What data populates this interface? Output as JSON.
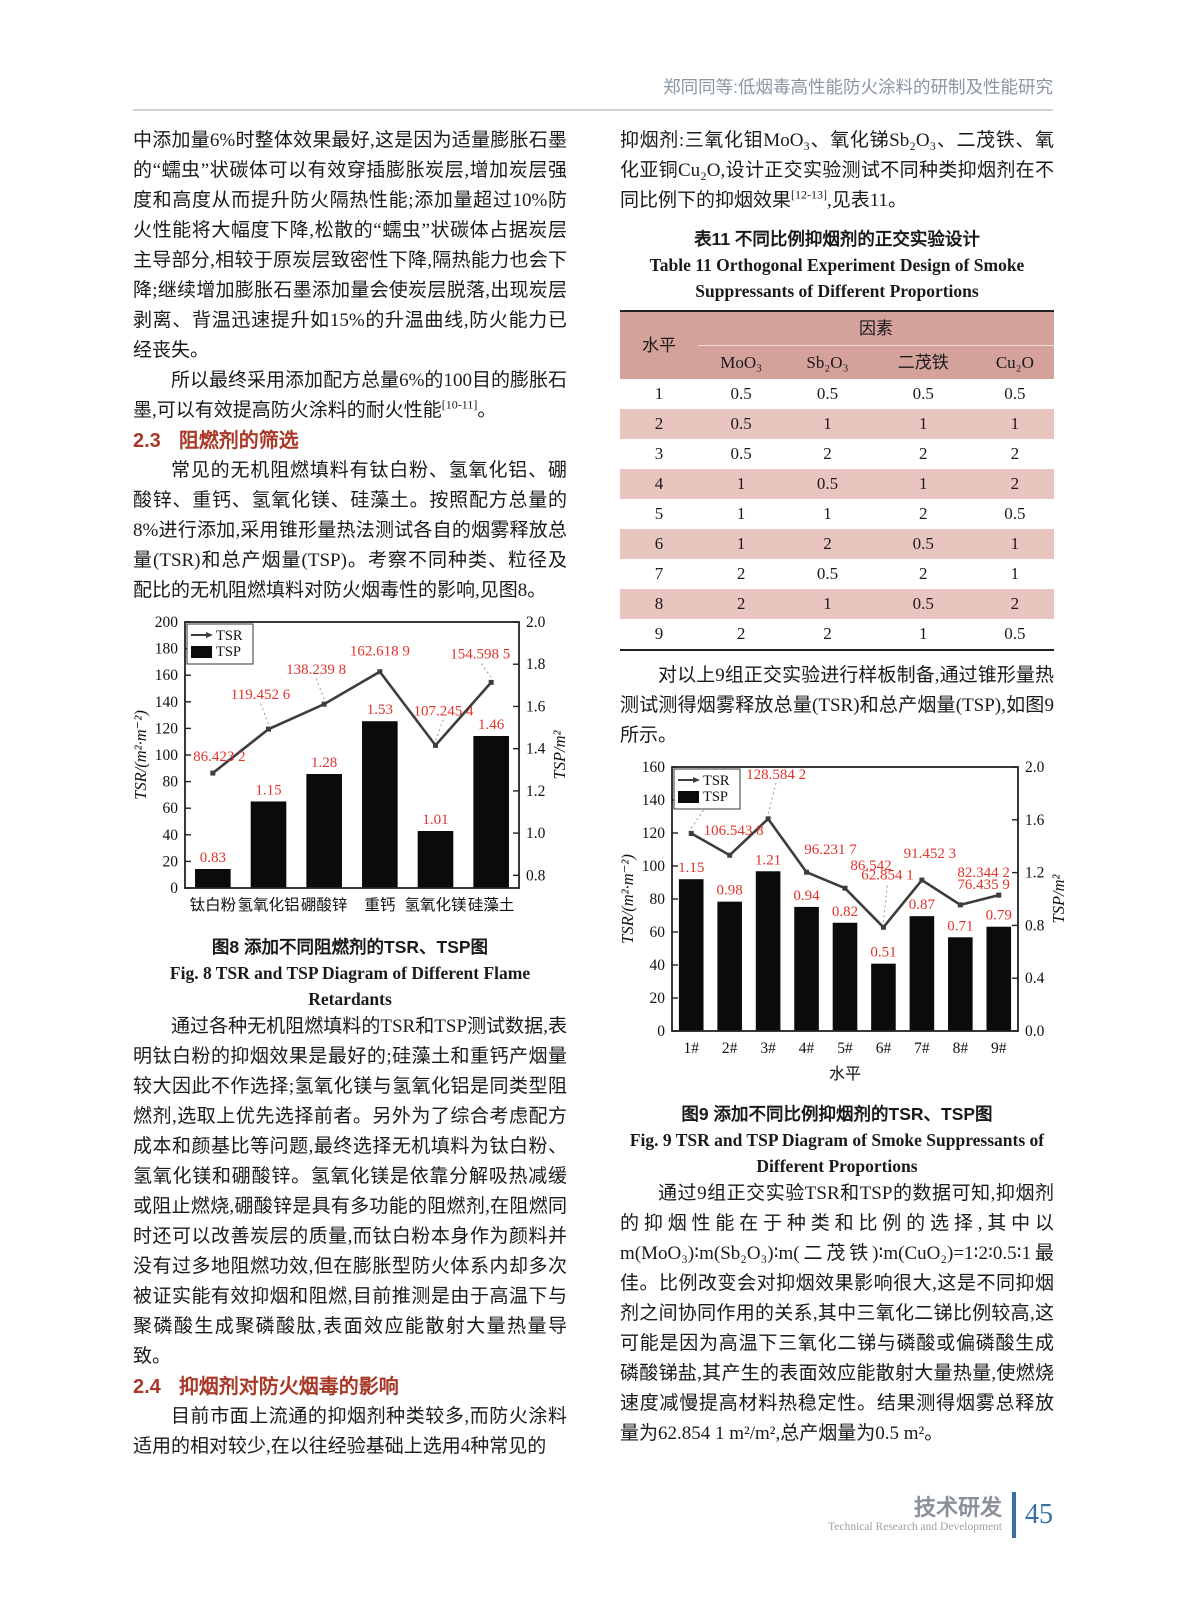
{
  "header": {
    "running_title": "郑同同等:低烟毒高性能防火涂料的研制及性能研究"
  },
  "left_column": {
    "para1": "中添加量6%时整体效果最好,这是因为适量膨胀石墨的“蠕虫”状碳体可以有效穿插膨胀炭层,增加炭层强度和高度从而提升防火隔热性能;添加量超过10%防火性能将大幅度下降,松散的“蠕虫”状碳体占据炭层主导部分,相较于原炭层致密性下降,隔热能力也会下降;继续增加膨胀石墨添加量会使炭层脱落,出现炭层剥离、背温迅速提升如15%的升温曲线,防火能力已经丧失。",
    "para2": {
      "text": "所以最终采用添加配方总量6%的100目的膨胀石墨,可以有效提高防火涂料的耐火性能",
      "ref": "[10-11]",
      "tail": "。"
    },
    "heading_2_3": {
      "num": "2.3",
      "title": "阻燃剂的筛选"
    },
    "para3": "常见的无机阻燃填料有钛白粉、氢氧化铝、硼酸锌、重钙、氢氧化镁、硅藻土。按照配方总量的8%进行添加,采用锥形量热法测试各自的烟雾释放总量(TSR)和总产烟量(TSP)。考察不同种类、粒径及配比的无机阻燃填料对防火烟毒性的影响,见图8。",
    "fig8_caption_cn": "图8  添加不同阻燃剂的TSR、TSP图",
    "fig8_caption_en": "Fig. 8  TSR and TSP Diagram of Different Flame Retardants",
    "para4": "通过各种无机阻燃填料的TSR和TSP测试数据,表明钛白粉的抑烟效果是最好的;硅藻土和重钙产烟量较大因此不作选择;氢氧化镁与氢氧化铝是同类型阻燃剂,选取上优先选择前者。另外为了综合考虑配方成本和颜基比等问题,最终选择无机填料为钛白粉、氢氧化镁和硼酸锌。氢氧化镁是依靠分解吸热减缓或阻止燃烧,硼酸锌是具有多功能的阻燃剂,在阻燃同时还可以改善炭层的质量,而钛白粉本身作为颜料并没有过多地阻燃功效,但在膨胀型防火体系内却多次被证实能有效抑烟和阻燃,目前推测是由于高温下与聚磷酸生成聚磷酸肽,表面效应能散射大量热量导致。",
    "heading_2_4": {
      "num": "2.4",
      "title": "抑烟剂对防火烟毒的影响"
    },
    "para5": "目前市面上流通的抑烟剂种类较多,而防火涂料适用的相对较少,在以往经验基础上选用4种常见的"
  },
  "right_column": {
    "para1": {
      "text": "抑烟剂:三氧化钼MoO₃、氧化锑Sb₂O₃、二茂铁、氧化亚铜Cu₂O,设计正交实验测试不同种类抑烟剂在不同比例下的抑烟效果",
      "ref": "[12-13]",
      "tail": ",见表11。"
    },
    "table11": {
      "caption_cn": "表11  不同比例抑烟剂的正交实验设计",
      "caption_en": "Table 11  Orthogonal Experiment Design of Smoke Suppressants of Different Proportions",
      "level_header": "水平",
      "group_header": "因素",
      "factors": [
        "MoO₃",
        "Sb₂O₃",
        "二茂铁",
        "Cu₂O"
      ],
      "rows": [
        [
          "1",
          "0.5",
          "0.5",
          "0.5",
          "0.5"
        ],
        [
          "2",
          "0.5",
          "1",
          "1",
          "1"
        ],
        [
          "3",
          "0.5",
          "2",
          "2",
          "2"
        ],
        [
          "4",
          "1",
          "0.5",
          "1",
          "2"
        ],
        [
          "5",
          "1",
          "1",
          "2",
          "0.5"
        ],
        [
          "6",
          "1",
          "2",
          "0.5",
          "1"
        ],
        [
          "7",
          "2",
          "0.5",
          "2",
          "1"
        ],
        [
          "8",
          "2",
          "1",
          "0.5",
          "2"
        ],
        [
          "9",
          "2",
          "2",
          "1",
          "0.5"
        ]
      ]
    },
    "para2": "对以上9组正交实验进行样板制备,通过锥形量热测试测得烟雾释放总量(TSR)和总产烟量(TSP),如图9所示。",
    "fig9_caption_cn": "图9  添加不同比例抑烟剂的TSR、TSP图",
    "fig9_caption_en": "Fig. 9  TSR and TSP Diagram of Smoke Suppressants of Different Proportions",
    "para3": "通过9组正交实验TSR和TSP的数据可知,抑烟剂的抑烟性能在于种类和比例的选择,其中以m(MoO₃)∶m(Sb₂O₃)∶m(二茂铁)∶m(CuO₂)=1∶2∶0.5∶1最佳。比例改变会对抑烟效果影响很大,这是不同抑烟剂之间协同作用的关系,其中三氧化二锑比例较高,这可能是因为高温下三氧化二锑与磷酸或偏磷酸生成磷酸锑盐,其产生的表面效应能散射大量热量,使燃烧速度减慢提高材料热稳定性。结果测得烟雾总释放量为62.854 1 m²/m²,总产烟量为0.5 m²。"
  },
  "footer": {
    "section_cn": "技术研发",
    "section_en": "Technical Research and Development",
    "page_number": "45"
  },
  "chart_data": [
    {
      "id": "fig8",
      "type": "bar",
      "title": "添加不同阻燃剂的TSR、TSP图",
      "categories": [
        "钛白粉",
        "氢氧化铝",
        "硼酸锌",
        "重钙",
        "氢氧化镁",
        "硅藻土"
      ],
      "series": [
        {
          "name": "TSR",
          "type": "line",
          "axis": "left",
          "values": [
            86.4232,
            119.4526,
            138.2398,
            162.6189,
            107.2454,
            154.5985
          ],
          "labels": [
            "86.423 2",
            "119.452 6",
            "138.239 8",
            "162.618 9",
            "107.245 4",
            "154.598 5"
          ]
        },
        {
          "name": "TSP",
          "type": "bar",
          "axis": "right",
          "values": [
            0.83,
            1.15,
            1.28,
            1.53,
            1.01,
            1.46
          ],
          "labels": [
            "0.83",
            "1.15",
            "1.28",
            "1.53",
            "1.01",
            "1.46"
          ]
        }
      ],
      "left_axis": {
        "label": "TSR/(m²·m⁻²)",
        "min": 0,
        "max": 200,
        "step": 20
      },
      "right_axis": {
        "label": "TSP/m²",
        "min": 0.74,
        "max": 2.0,
        "ticks": [
          0.8,
          1.0,
          1.2,
          1.4,
          1.6,
          1.8,
          2.0
        ]
      },
      "xlabel": "",
      "legend": [
        "TSR",
        "TSP"
      ],
      "legend_position": "top-left",
      "grid": false,
      "label_color": "#e0332b",
      "bar_color": "#0b0b0b",
      "line_color": "#3d3d3d",
      "label_dx": [
        -2,
        -8,
        -8,
        0,
        8,
        8
      ],
      "label_dy": [
        -12,
        -30,
        -30,
        -16,
        -30,
        -24
      ]
    },
    {
      "id": "fig9",
      "type": "bar",
      "title": "添加不同比例抑烟剂的TSR、TSP图",
      "categories": [
        "1#",
        "2#",
        "3#",
        "4#",
        "5#",
        "6#",
        "7#",
        "8#",
        "9#"
      ],
      "series": [
        {
          "name": "TSR",
          "type": "line",
          "axis": "left",
          "values": [
            119.7436,
            106.5438,
            128.5842,
            96.2317,
            86.542,
            62.8541,
            91.4523,
            76.4359,
            82.3442
          ],
          "labels": [
            "119.743 6",
            "106.543 8",
            "128.584 2",
            "96.231 7",
            "86.542",
            "62.854 1",
            "91.452 3",
            "76.435 9",
            "82.344 2"
          ]
        },
        {
          "name": "TSP",
          "type": "bar",
          "axis": "right",
          "values": [
            1.15,
            0.98,
            1.21,
            0.94,
            0.82,
            0.51,
            0.87,
            0.71,
            0.79
          ],
          "labels": [
            "1.15",
            "0.98",
            "1.21",
            "0.94",
            "0.82",
            "0.51",
            "0.87",
            "0.71",
            "0.79"
          ]
        }
      ],
      "left_axis": {
        "label": "TSR/(m²·m⁻²)",
        "min": 0,
        "max": 160,
        "step": 20
      },
      "right_axis": {
        "label": "TSP/m²",
        "min": 0.0,
        "max": 2.0,
        "ticks": [
          0.0,
          0.4,
          0.8,
          1.2,
          1.6,
          2.0
        ]
      },
      "xlabel": "水平",
      "legend": [
        "TSR",
        "TSP"
      ],
      "legend_position": "top-left",
      "grid": false,
      "label_color": "#e0332b",
      "bar_color": "#0b0b0b",
      "line_color": "#3d3d3d",
      "label_dx": [
        -10,
        4,
        8,
        24,
        26,
        4,
        8,
        28,
        14
      ],
      "label_dy": [
        -38,
        -20,
        -40,
        -18,
        -18,
        -48,
        -22,
        -16,
        -18
      ]
    }
  ]
}
